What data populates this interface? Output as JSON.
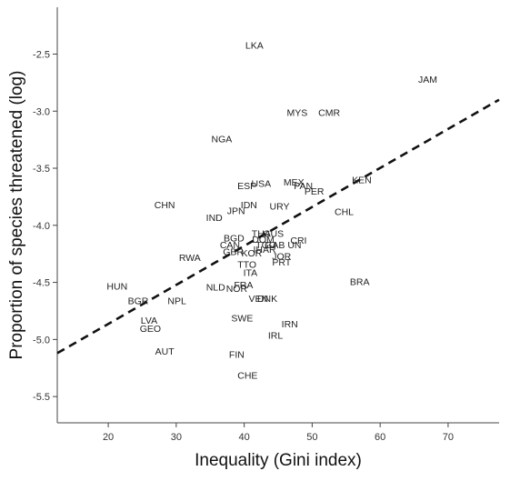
{
  "chart_data": {
    "type": "scatter",
    "title": "",
    "xlabel": "Inequality (Gini index)",
    "ylabel": "Proportion of species threatened (log)",
    "xlim": [
      12.5,
      77.5
    ],
    "ylim": [
      -5.73,
      -2.09
    ],
    "xticks": [
      20,
      30,
      40,
      50,
      60,
      70
    ],
    "yticks": [
      -2.5,
      -3.0,
      -3.5,
      -4.0,
      -4.5,
      -5.0,
      -5.5
    ],
    "ytick_labels": [
      "-2.5",
      "-3.0",
      "-3.5",
      "-4.0",
      "-4.5",
      "-5.0",
      "-5.5"
    ],
    "grid": false,
    "marker": "text-labels",
    "fit_line": {
      "style": "dashed",
      "x": [
        12.5,
        77.5
      ],
      "y": [
        -5.12,
        -2.9
      ]
    },
    "points": [
      {
        "label": "LKA",
        "x": 41.5,
        "y": -2.42
      },
      {
        "label": "JAM",
        "x": 67.0,
        "y": -2.72
      },
      {
        "label": "MYS",
        "x": 47.8,
        "y": -3.01
      },
      {
        "label": "CMR",
        "x": 52.5,
        "y": -3.01
      },
      {
        "label": "NGA",
        "x": 36.7,
        "y": -3.24
      },
      {
        "label": "KEN",
        "x": 57.3,
        "y": -3.6
      },
      {
        "label": "ESP",
        "x": 40.4,
        "y": -3.65
      },
      {
        "label": "USA",
        "x": 42.5,
        "y": -3.63
      },
      {
        "label": "MEX",
        "x": 47.3,
        "y": -3.62
      },
      {
        "label": "PAN",
        "x": 48.7,
        "y": -3.65
      },
      {
        "label": "PER",
        "x": 50.3,
        "y": -3.7
      },
      {
        "label": "CHN",
        "x": 28.3,
        "y": -3.82
      },
      {
        "label": "IDN",
        "x": 40.7,
        "y": -3.82
      },
      {
        "label": "URY",
        "x": 45.2,
        "y": -3.83
      },
      {
        "label": "JPN",
        "x": 38.8,
        "y": -3.87
      },
      {
        "label": "CHL",
        "x": 54.7,
        "y": -3.88
      },
      {
        "label": "IND",
        "x": 35.6,
        "y": -3.93
      },
      {
        "label": "THA",
        "x": 42.5,
        "y": -4.07
      },
      {
        "label": "GUS",
        "x": 44.3,
        "y": -4.07
      },
      {
        "label": "BGD",
        "x": 38.5,
        "y": -4.11
      },
      {
        "label": "DOM",
        "x": 42.8,
        "y": -4.12
      },
      {
        "label": "CRI",
        "x": 48.0,
        "y": -4.13
      },
      {
        "label": "CAN",
        "x": 37.9,
        "y": -4.17
      },
      {
        "label": "TGO",
        "x": 43.2,
        "y": -4.17
      },
      {
        "label": "GAB",
        "x": 44.5,
        "y": -4.17
      },
      {
        "label": "UN",
        "x": 47.4,
        "y": -4.17
      },
      {
        "label": "GBR",
        "x": 38.4,
        "y": -4.23
      },
      {
        "label": "KOR",
        "x": 41.1,
        "y": -4.24
      },
      {
        "label": "IHAR",
        "x": 43.0,
        "y": -4.21
      },
      {
        "label": "RWA",
        "x": 32.0,
        "y": -4.28
      },
      {
        "label": "JOR",
        "x": 45.5,
        "y": -4.27
      },
      {
        "label": "TTO",
        "x": 40.4,
        "y": -4.34
      },
      {
        "label": "PRT",
        "x": 45.5,
        "y": -4.32
      },
      {
        "label": "ITA",
        "x": 40.9,
        "y": -4.41
      },
      {
        "label": "BRA",
        "x": 57.0,
        "y": -4.49
      },
      {
        "label": "HUN",
        "x": 21.3,
        "y": -4.53
      },
      {
        "label": "NLD",
        "x": 35.8,
        "y": -4.54
      },
      {
        "label": "NOR",
        "x": 38.9,
        "y": -4.55
      },
      {
        "label": "FRA",
        "x": 39.9,
        "y": -4.52
      },
      {
        "label": "BGR",
        "x": 24.4,
        "y": -4.66
      },
      {
        "label": "NPL",
        "x": 30.1,
        "y": -4.66
      },
      {
        "label": "VEN",
        "x": 42.1,
        "y": -4.64
      },
      {
        "label": "DNK",
        "x": 43.4,
        "y": -4.64
      },
      {
        "label": "SWE",
        "x": 39.7,
        "y": -4.81
      },
      {
        "label": "LVA",
        "x": 26.0,
        "y": -4.83
      },
      {
        "label": "IRN",
        "x": 46.7,
        "y": -4.86
      },
      {
        "label": "GEO",
        "x": 26.2,
        "y": -4.9
      },
      {
        "label": "IRL",
        "x": 44.6,
        "y": -4.96
      },
      {
        "label": "AUT",
        "x": 28.3,
        "y": -5.1
      },
      {
        "label": "FIN",
        "x": 38.9,
        "y": -5.13
      },
      {
        "label": "CHE",
        "x": 40.5,
        "y": -5.31
      }
    ]
  }
}
